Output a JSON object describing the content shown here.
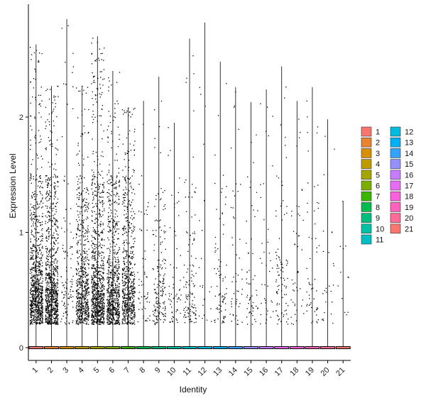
{
  "chart_data": {
    "type": "violin",
    "xlabel": "Identity",
    "ylabel": "Expression Level",
    "categories": [
      "1",
      "2",
      "3",
      "4",
      "5",
      "6",
      "7",
      "8",
      "9",
      "10",
      "11",
      "12",
      "13",
      "14",
      "15",
      "16",
      "17",
      "18",
      "19",
      "20",
      "21"
    ],
    "y_ticks": [
      0,
      1,
      2
    ],
    "ylim": [
      -0.05,
      2.95
    ],
    "legend_position": "right",
    "legend_columns": 2,
    "series": [
      {
        "name": "1",
        "color": "#F8766D",
        "max": 2.63,
        "jitter_points": 900
      },
      {
        "name": "2",
        "color": "#EA8331",
        "max": 2.27,
        "jitter_points": 900
      },
      {
        "name": "3",
        "color": "#D89000",
        "max": 2.85,
        "jitter_points": 110
      },
      {
        "name": "4",
        "color": "#C09B00",
        "max": 2.27,
        "jitter_points": 650
      },
      {
        "name": "5",
        "color": "#A3A500",
        "max": 2.7,
        "jitter_points": 900
      },
      {
        "name": "6",
        "color": "#7CAE00",
        "max": 2.4,
        "jitter_points": 750
      },
      {
        "name": "7",
        "color": "#39B600",
        "max": 2.08,
        "jitter_points": 650
      },
      {
        "name": "8",
        "color": "#00BB4E",
        "max": 2.14,
        "jitter_points": 55
      },
      {
        "name": "9",
        "color": "#00BF7D",
        "max": 2.35,
        "jitter_points": 180
      },
      {
        "name": "10",
        "color": "#00C1A3",
        "max": 1.95,
        "jitter_points": 60
      },
      {
        "name": "11",
        "color": "#00BFC4",
        "max": 2.68,
        "jitter_points": 120
      },
      {
        "name": "12",
        "color": "#00BAE0",
        "max": 2.82,
        "jitter_points": 22
      },
      {
        "name": "13",
        "color": "#00B0F6",
        "max": 2.48,
        "jitter_points": 80
      },
      {
        "name": "14",
        "color": "#35A2FF",
        "max": 2.26,
        "jitter_points": 50
      },
      {
        "name": "15",
        "color": "#9590FF",
        "max": 2.13,
        "jitter_points": 55
      },
      {
        "name": "16",
        "color": "#C77CFF",
        "max": 2.24,
        "jitter_points": 40
      },
      {
        "name": "17",
        "color": "#E76BF3",
        "max": 2.44,
        "jitter_points": 90
      },
      {
        "name": "18",
        "color": "#FA62DB",
        "max": 2.14,
        "jitter_points": 45
      },
      {
        "name": "19",
        "color": "#FF62BC",
        "max": 2.26,
        "jitter_points": 55
      },
      {
        "name": "20",
        "color": "#FF6A98",
        "max": 1.98,
        "jitter_points": 25
      },
      {
        "name": "21",
        "color": "#F8766D",
        "max": 1.27,
        "jitter_points": 12
      }
    ]
  }
}
